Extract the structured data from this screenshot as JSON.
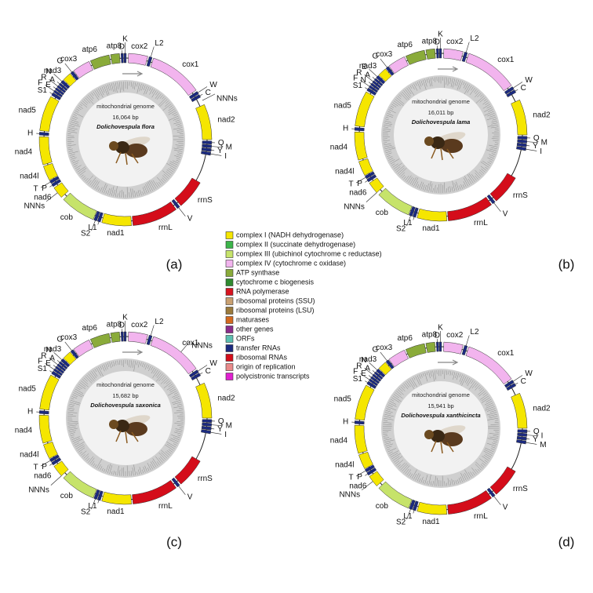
{
  "legend": {
    "items": [
      {
        "label": "complex I (NADH dehydrogenase)",
        "color": "#f5e600"
      },
      {
        "label": "complex II (succinate dehydrogenase)",
        "color": "#3cb54a"
      },
      {
        "label": "complex III (ubichinol cytochrome c reductase)",
        "color": "#c6e36a"
      },
      {
        "label": "complex IV (cytochrome c oxidase)",
        "color": "#f2b4ee"
      },
      {
        "label": "ATP synthase",
        "color": "#8aab3a"
      },
      {
        "label": "cytochrome c biogenesis",
        "color": "#2f8a30"
      },
      {
        "label": "RNA polymerase",
        "color": "#d8131f"
      },
      {
        "label": "ribosomal proteins (SSU)",
        "color": "#c9a071"
      },
      {
        "label": "ribosomal proteins (LSU)",
        "color": "#9b7a3c"
      },
      {
        "label": "maturases",
        "color": "#d4691e"
      },
      {
        "label": "other genes",
        "color": "#8b2c8b"
      },
      {
        "label": "ORFs",
        "color": "#5bbfb0"
      },
      {
        "label": "transfer RNAs",
        "color": "#1b2a80"
      },
      {
        "label": "ribosomal RNAs",
        "color": "#d40d1a"
      },
      {
        "label": "origin of replication",
        "color": "#e88a8a"
      },
      {
        "label": "polycistronic transcripts",
        "color": "#e020d0"
      }
    ]
  },
  "panels": [
    {
      "tag": "(a)",
      "heading": "mitochondrial genome",
      "size": "16,064 bp",
      "species": "Dolichovespula flora",
      "genes": [
        "atp8",
        "D",
        "K",
        "cox2",
        "L2",
        "cox1",
        "W",
        "C",
        "nad2",
        "Q",
        "M",
        "Y",
        "I",
        "rrnS",
        "V",
        "rrnL",
        "nad1",
        "L1",
        "S2",
        "cob",
        "nad6",
        "P",
        "T",
        "nad4l",
        "nad4",
        "H",
        "nad5",
        "S1",
        "F",
        "E",
        "R",
        "A",
        "N",
        "nad3",
        "G",
        "cox3",
        "atp6"
      ],
      "noncoding": [
        "NNNs",
        "NNNs"
      ]
    },
    {
      "tag": "(b)",
      "heading": "mitochondrial genome",
      "size": "16,011 bp",
      "species": "Dolichovespula lama",
      "genes": [
        "atp8",
        "D",
        "K",
        "cox2",
        "L2",
        "cox1",
        "W",
        "C",
        "nad2",
        "Q",
        "M",
        "Y",
        "I",
        "rrnS",
        "V",
        "rrnL",
        "nad1",
        "L1",
        "S2",
        "cob",
        "nad6",
        "P",
        "T",
        "nad4l",
        "nad4",
        "H",
        "nad5",
        "S1",
        "F",
        "N",
        "R",
        "A",
        "E",
        "nad3",
        "G",
        "cox3",
        "atp6"
      ],
      "noncoding": [
        "NNNs"
      ]
    },
    {
      "tag": "(c)",
      "heading": "mitochondrial genome",
      "size": "15,682 bp",
      "species": "Dolichovespula saxonica",
      "genes": [
        "atp8",
        "D",
        "K",
        "cox2",
        "L2",
        "cox1",
        "W",
        "C",
        "nad2",
        "Q",
        "M",
        "Y",
        "I",
        "rrnS",
        "V",
        "rrnL",
        "nad1",
        "L1",
        "S2",
        "cob",
        "nad6",
        "P",
        "T",
        "nad4l",
        "nad4",
        "H",
        "nad5",
        "S1",
        "F",
        "E",
        "R",
        "A",
        "N",
        "nad3",
        "G",
        "cox3",
        "atp6"
      ],
      "noncoding": [
        "NNNs",
        "NNNs"
      ]
    },
    {
      "tag": "(d)",
      "heading": "mitochondrial genome",
      "size": "15,941 bp",
      "species": "Dolichovespula xanthicincta",
      "genes": [
        "atp8",
        "D",
        "K",
        "cox2",
        "L2",
        "cox1",
        "W",
        "C",
        "nad2",
        "Q",
        "I",
        "Y",
        "M",
        "rrnS",
        "V",
        "rrnL",
        "nad1",
        "L1",
        "S2",
        "cob",
        "nad6",
        "P",
        "T",
        "nad4l",
        "nad4",
        "H",
        "nad5",
        "S1",
        "F",
        "E",
        "R",
        "A",
        "N",
        "nad3",
        "G",
        "cox3",
        "atp6"
      ],
      "noncoding": [
        "NNNs"
      ]
    }
  ]
}
